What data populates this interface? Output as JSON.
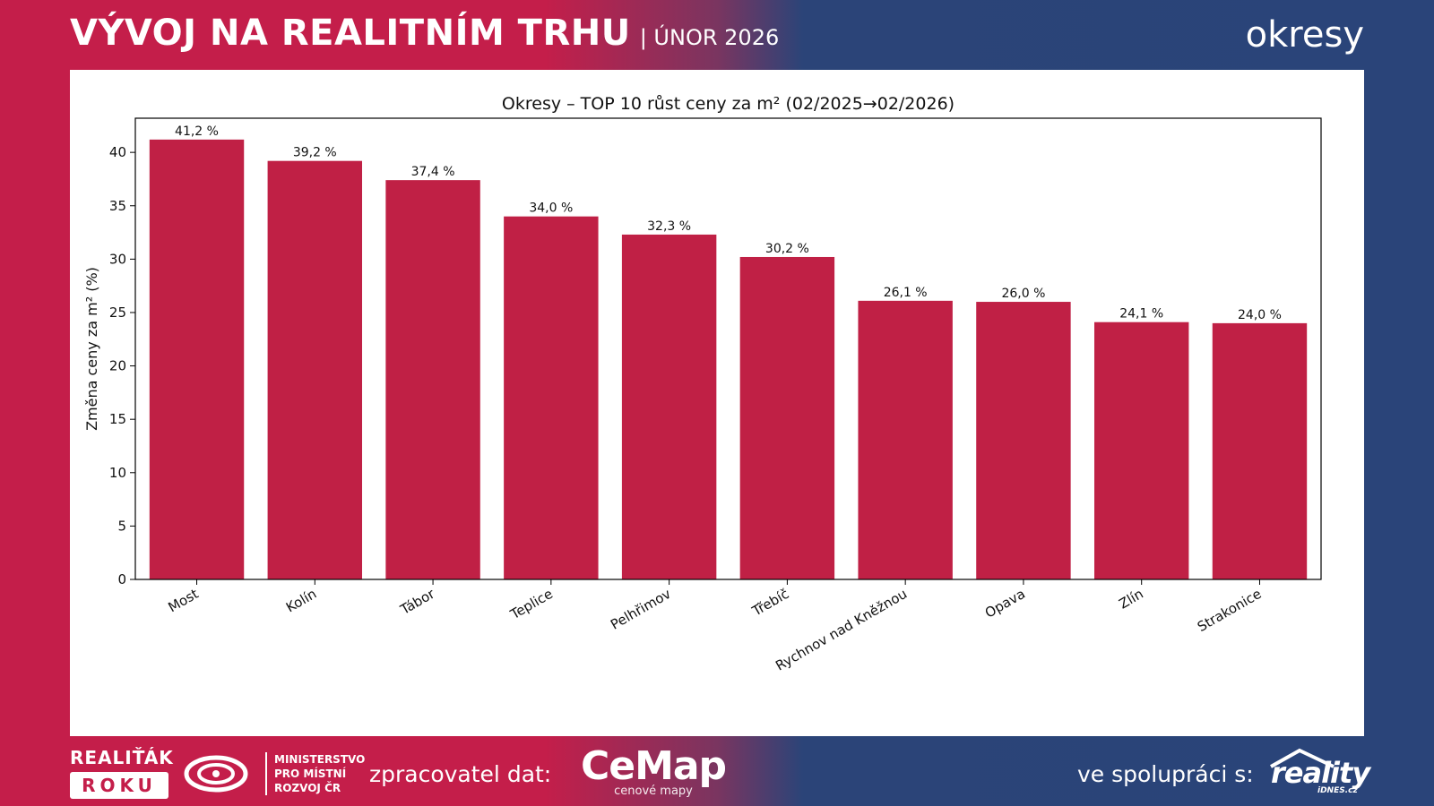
{
  "header": {
    "title": "VÝVOJ NA REALITNÍM TRHU",
    "date_label": "| ÚNOR 2026",
    "section": "okresy"
  },
  "footer": {
    "realitak_top": "REALIŤÁK",
    "realitak_box": "ROKU",
    "ministry_line1": "MINISTERSTVO",
    "ministry_line2": "PRO MÍSTNÍ",
    "ministry_line3": "ROZVOJ ČR",
    "processor_label": "zpracovatel dat:",
    "cemap_name": "CeMap",
    "cemap_sub": "cenové mapy",
    "cooperation_label": "ve spolupráci s:",
    "reality_word": "reality",
    "reality_sub": "iDNES.cz"
  },
  "colors": {
    "bar": "#c02045",
    "brand_red": "#c41e4a",
    "brand_blue": "#2a4479"
  },
  "chart_data": {
    "type": "bar",
    "title": "Okresy – TOP 10 růst ceny za m² (02/2025→02/2026)",
    "xlabel": "",
    "ylabel": "Změna ceny za m² (%)",
    "categories": [
      "Most",
      "Kolín",
      "Tábor",
      "Teplice",
      "Pelhřimov",
      "Třebíč",
      "Rychnov nad Kněžnou",
      "Opava",
      "Zlín",
      "Strakonice"
    ],
    "values": [
      41.2,
      39.2,
      37.4,
      34.0,
      32.3,
      30.2,
      26.1,
      26.0,
      24.1,
      24.0
    ],
    "data_labels": [
      "41,2 %",
      "39,2 %",
      "37,4 %",
      "34,0 %",
      "32,3 %",
      "30,2 %",
      "26,1 %",
      "26,0 %",
      "24,1 %",
      "24,0 %"
    ],
    "yticks": [
      "0",
      "5",
      "10",
      "15",
      "20",
      "25",
      "30",
      "35",
      "40"
    ],
    "ylim": [
      0,
      43.2
    ],
    "grid": false,
    "legend": "none"
  }
}
